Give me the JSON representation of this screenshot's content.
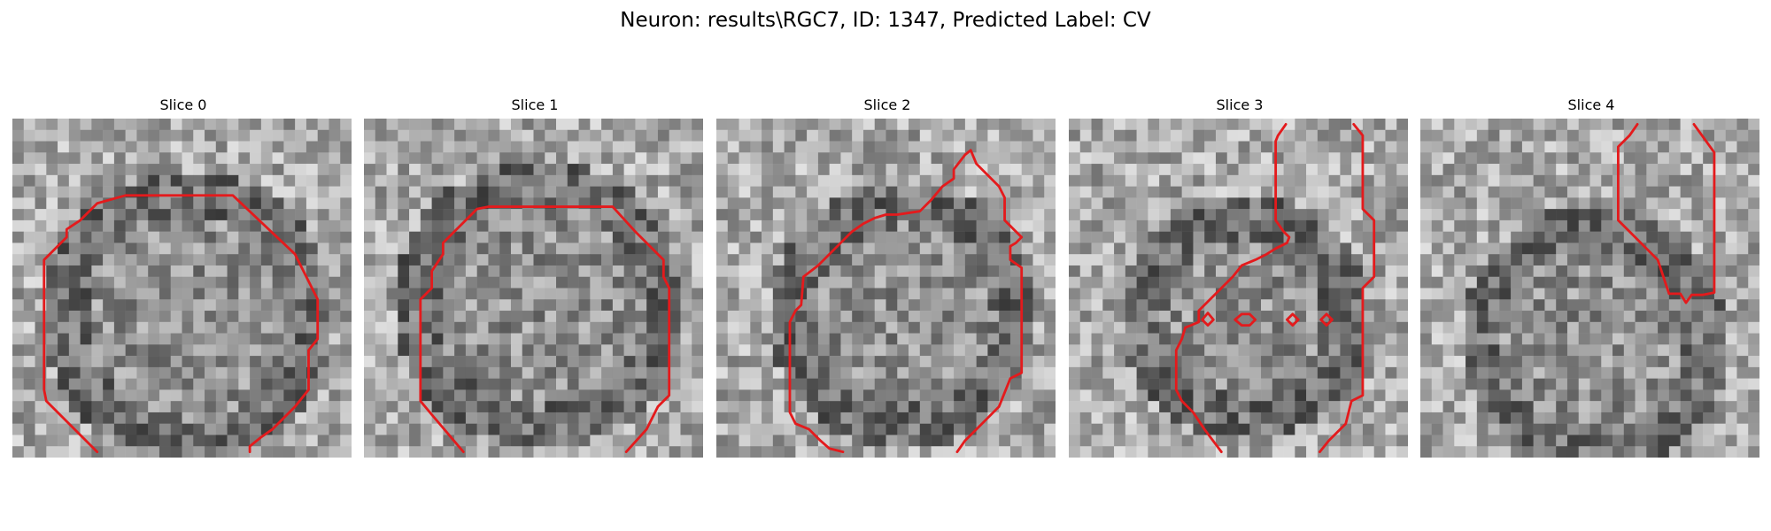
{
  "figure": {
    "title": "Neuron: results\\RGC7, ID: 1347, Predicted Label: CV"
  },
  "contour_color": "#e41a1c",
  "panels": [
    {
      "title": "Slice 0"
    },
    {
      "title": "Slice 1"
    },
    {
      "title": "Slice 2"
    },
    {
      "title": "Slice 3"
    },
    {
      "title": "Slice 4"
    }
  ]
}
